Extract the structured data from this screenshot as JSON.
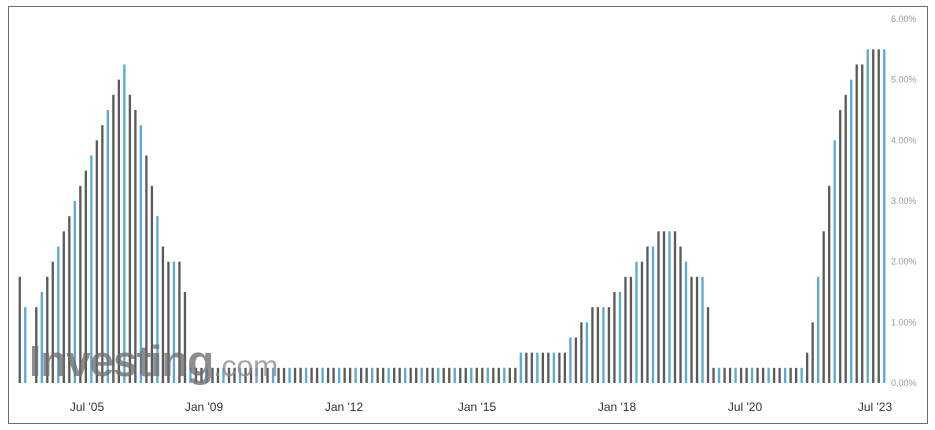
{
  "watermark": {
    "brand": "Investing",
    "suffix": ".com"
  },
  "colors": {
    "bar": "#5a5a5a",
    "bar_accent": "#5aa9d6",
    "axis_text": "#9a9a9a"
  },
  "chart_data": {
    "type": "bar",
    "title": "",
    "xlabel": "",
    "ylabel": "",
    "ylim": [
      0,
      6
    ],
    "y_unit": "%",
    "y_ticks": [
      "0.00%",
      "1.00%",
      "2.00%",
      "3.00%",
      "4.00%",
      "5.00%",
      "6.00%"
    ],
    "x_ticks": [
      "Jul '05",
      "Jan '09",
      "Jan '12",
      "Jan '15",
      "Jan '18",
      "Jul '20",
      "Jul '23"
    ],
    "series": [
      {
        "values": [
          1.75,
          1.25,
          0.0,
          1.25,
          1.5,
          1.75,
          2.0,
          2.25,
          2.5,
          2.75,
          3.0,
          3.25,
          3.5,
          3.75,
          4.0,
          4.25,
          4.5,
          4.75,
          5.0,
          5.25,
          4.75,
          4.5,
          4.25,
          3.75,
          3.25,
          2.75,
          2.25,
          2.0,
          2.0,
          2.0,
          1.5,
          0.25,
          0.25,
          0.25,
          0.25,
          0.25,
          0.25,
          0.25,
          0.25,
          0.25,
          0.25,
          0.25,
          0.25,
          0.25,
          0.25,
          0.25,
          0.25,
          0.25,
          0.25,
          0.25,
          0.25,
          0.25,
          0.25,
          0.25,
          0.25,
          0.25,
          0.25,
          0.25,
          0.25,
          0.25,
          0.25,
          0.25,
          0.25,
          0.25,
          0.25,
          0.25,
          0.25,
          0.25,
          0.25,
          0.25,
          0.25,
          0.25,
          0.25,
          0.25,
          0.25,
          0.25,
          0.25,
          0.25,
          0.25,
          0.25,
          0.25,
          0.25,
          0.25,
          0.25,
          0.25,
          0.25,
          0.25,
          0.25,
          0.25,
          0.25,
          0.25,
          0.5,
          0.5,
          0.5,
          0.5,
          0.5,
          0.5,
          0.5,
          0.5,
          0.5,
          0.75,
          0.75,
          1.0,
          1.0,
          1.25,
          1.25,
          1.25,
          1.25,
          1.5,
          1.5,
          1.75,
          1.75,
          2.0,
          2.0,
          2.25,
          2.25,
          2.5,
          2.5,
          2.5,
          2.5,
          2.25,
          2.0,
          1.75,
          1.75,
          1.75,
          1.25,
          0.25,
          0.25,
          0.25,
          0.25,
          0.25,
          0.25,
          0.25,
          0.25,
          0.25,
          0.25,
          0.25,
          0.25,
          0.25,
          0.25,
          0.25,
          0.25,
          0.25,
          0.5,
          1.0,
          1.75,
          2.5,
          3.25,
          4.0,
          4.5,
          4.75,
          5.0,
          5.25,
          5.25,
          5.5,
          5.5,
          5.5,
          5.5
        ]
      }
    ],
    "grid": false,
    "legend": "none"
  }
}
